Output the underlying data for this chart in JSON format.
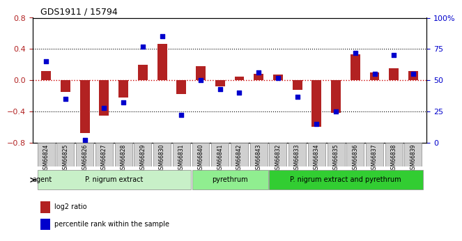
{
  "title": "GDS1911 / 15794",
  "samples": [
    "GSM66824",
    "GSM66825",
    "GSM66826",
    "GSM66827",
    "GSM66828",
    "GSM66829",
    "GSM66830",
    "GSM66831",
    "GSM66840",
    "GSM66841",
    "GSM66842",
    "GSM66843",
    "GSM66832",
    "GSM66833",
    "GSM66834",
    "GSM66835",
    "GSM66836",
    "GSM66837",
    "GSM66838",
    "GSM66839"
  ],
  "log2_ratio": [
    0.12,
    -0.15,
    -0.68,
    -0.45,
    -0.22,
    0.2,
    0.47,
    -0.18,
    0.18,
    -0.08,
    0.05,
    0.08,
    0.07,
    -0.12,
    -0.6,
    -0.42,
    0.33,
    0.1,
    0.15,
    0.12
  ],
  "percentile": [
    65,
    35,
    2,
    28,
    32,
    77,
    85,
    22,
    50,
    43,
    40,
    56,
    52,
    37,
    15,
    25,
    72,
    55,
    70,
    55
  ],
  "bar_color": "#b22222",
  "dot_color": "#0000cc",
  "zero_line_color": "#cc0000",
  "grid_color": "#000000",
  "ylim": [
    -0.8,
    0.8
  ],
  "y2lim": [
    0,
    100
  ],
  "yticks": [
    -0.8,
    -0.4,
    0.0,
    0.4,
    0.8
  ],
  "y2ticks": [
    0,
    25,
    50,
    75,
    100
  ],
  "y2ticklabels": [
    "0",
    "25",
    "50",
    "75",
    "100%"
  ],
  "groups": [
    {
      "label": "P. nigrum extract",
      "start": 0,
      "end": 8,
      "color": "#c8f0c8"
    },
    {
      "label": "pyrethrum",
      "start": 8,
      "end": 12,
      "color": "#90ee90"
    },
    {
      "label": "P. nigrum extract and pyrethrum",
      "start": 12,
      "end": 20,
      "color": "#32cd32"
    }
  ],
  "legend_bar_label": "log2 ratio",
  "legend_dot_label": "percentile rank within the sample",
  "agent_label": "agent",
  "bg_color": "#ffffff",
  "tick_label_bg": "#d0d0d0"
}
